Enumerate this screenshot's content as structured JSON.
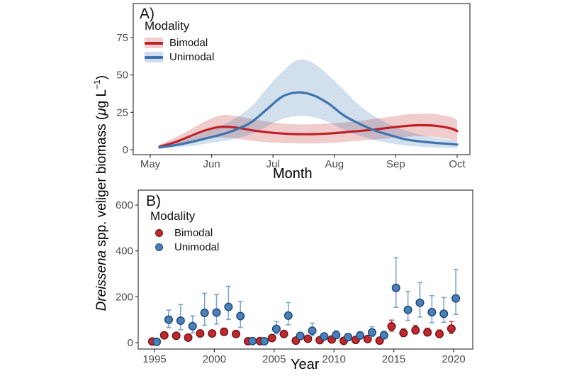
{
  "figure": {
    "y_axis_label": {
      "species": "Dreissena",
      "middle": " spp. veliger biomass (",
      "mu": "μ",
      "after_mu": "g L",
      "sup": "−1",
      "close": ")"
    }
  },
  "chart_data": [
    {
      "panel": "A",
      "tag": "A)",
      "type": "line",
      "title": "",
      "xlabel": "Month",
      "ylabel": "Dreissena spp. veliger biomass (μg L−1)",
      "x_ticks": [
        "May",
        "Jun",
        "Jul",
        "Aug",
        "Sep",
        "Oct"
      ],
      "y_ticks": [
        0,
        25,
        50,
        75
      ],
      "ylim": [
        0,
        75
      ],
      "grid": false,
      "legend": {
        "title": "Modality",
        "position": "top-left-inside",
        "items": [
          {
            "label": "Bimodal",
            "line_color": "#bf2127",
            "ribbon_color": "#f0ced2"
          },
          {
            "label": "Unimodal",
            "line_color": "#3d74ad",
            "ribbon_color": "#d2dcee"
          }
        ]
      },
      "x_months_from_may": [
        0.15,
        0.4,
        0.65,
        0.9,
        1.15,
        1.4,
        1.65,
        1.9,
        2.15,
        2.4,
        2.65,
        2.9,
        3.15,
        3.4,
        3.65,
        3.9,
        4.15,
        4.4,
        4.65,
        4.9,
        5.0
      ],
      "series": [
        {
          "name": "Bimodal",
          "color": "#bf2127",
          "values": [
            2,
            5,
            9,
            13,
            15.3,
            14.8,
            13,
            11.7,
            10.8,
            10.4,
            10.4,
            10.8,
            11.6,
            12.5,
            13.5,
            14.7,
            15.8,
            16.4,
            16,
            14.2,
            12.5
          ],
          "lower": [
            0.8,
            2.5,
            5,
            7.5,
            8.2,
            7.5,
            6,
            5,
            4.5,
            4.2,
            4.2,
            4.5,
            5.2,
            6,
            6.8,
            7.8,
            8.6,
            9,
            8.5,
            6.8,
            5.5
          ],
          "upper": [
            3.5,
            8,
            13.5,
            19,
            23,
            22.5,
            20.5,
            18.8,
            17.5,
            17,
            17,
            17.5,
            18.2,
            19.2,
            20.6,
            22,
            23.5,
            24,
            23.8,
            21.8,
            19.8
          ]
        },
        {
          "name": "Unimodal",
          "color": "#3d74ad",
          "values": [
            1.5,
            3,
            5,
            7.5,
            10,
            13.5,
            18.5,
            27,
            35.5,
            38.3,
            36.5,
            31,
            23,
            17.5,
            13,
            9.8,
            7,
            5.5,
            4.5,
            3.8,
            3.4
          ],
          "lower": [
            0.6,
            1.5,
            2.5,
            4,
            5.5,
            7.5,
            10.5,
            15.5,
            20.5,
            22.5,
            22,
            18.5,
            13.5,
            9.5,
            6.5,
            4.4,
            3,
            2,
            1.5,
            1.2,
            1
          ],
          "upper": [
            2.6,
            5,
            8,
            12,
            16,
            21.5,
            29,
            41,
            52,
            60,
            58,
            50,
            40,
            30,
            22.5,
            17,
            13,
            10,
            8,
            6.6,
            6
          ]
        }
      ]
    },
    {
      "panel": "B",
      "tag": "B)",
      "type": "scatter",
      "title": "",
      "xlabel": "Year",
      "ylabel": "Dreissena spp. veliger biomass (μg L−1)",
      "x_ticks": [
        1995,
        2000,
        2005,
        2010,
        2015,
        2020
      ],
      "y_ticks": [
        0,
        200,
        400,
        600
      ],
      "ylim": [
        0,
        650
      ],
      "grid": false,
      "legend": {
        "title": "Modality",
        "position": "top-left-inside",
        "items": [
          {
            "label": "Bimodal",
            "fill": "#c0282e",
            "stroke": "#701418"
          },
          {
            "label": "Unimodal",
            "fill": "#4a80ba",
            "stroke": "#1d4670"
          }
        ]
      },
      "years": [
        1995,
        1996,
        1997,
        1998,
        1999,
        2000,
        2001,
        2002,
        2003,
        2004,
        2005,
        2006,
        2007,
        2008,
        2009,
        2010,
        2011,
        2012,
        2013,
        2014,
        2015,
        2016,
        2017,
        2018,
        2019,
        2020
      ],
      "series": [
        {
          "name": "Bimodal",
          "fill": "#c0282e",
          "stroke": "#701418",
          "errorbar_color": "#cd4046",
          "values": [
            5,
            32,
            30,
            22,
            40,
            40,
            47,
            38,
            6,
            7,
            20,
            38,
            9,
            17,
            11,
            14,
            8,
            12,
            16,
            9,
            71,
            42,
            54,
            45,
            38,
            61
          ],
          "lower": [
            1,
            21,
            20,
            14,
            27,
            28,
            33,
            26,
            2,
            3,
            12,
            26,
            4,
            9,
            5,
            7,
            3,
            6,
            8,
            4,
            50,
            28,
            38,
            30,
            25,
            40
          ],
          "upper": [
            9,
            44,
            42,
            32,
            55,
            54,
            63,
            51,
            11,
            12,
            29,
            52,
            16,
            26,
            18,
            22,
            14,
            20,
            25,
            16,
            98,
            60,
            75,
            63,
            55,
            92
          ]
        },
        {
          "name": "Unimodal",
          "fill": "#4a80ba",
          "stroke": "#1d4670",
          "errorbar_color": "#7aa6d2",
          "values": [
            4,
            100,
            96,
            72,
            130,
            131,
            156,
            116,
            7,
            6,
            60,
            118,
            29,
            52,
            27,
            33,
            24,
            31,
            45,
            32,
            239,
            143,
            174,
            133,
            126,
            193
          ],
          "lower": [
            1,
            66,
            56,
            42,
            76,
            81,
            101,
            66,
            2,
            2,
            38,
            78,
            16,
            30,
            15,
            20,
            13,
            18,
            27,
            19,
            154,
            97,
            112,
            87,
            89,
            123
          ],
          "upper": [
            8,
            142,
            166,
            117,
            215,
            210,
            246,
            180,
            13,
            11,
            92,
            175,
            45,
            85,
            42,
            52,
            38,
            48,
            70,
            50,
            370,
            223,
            262,
            205,
            197,
            319
          ]
        }
      ]
    }
  ]
}
